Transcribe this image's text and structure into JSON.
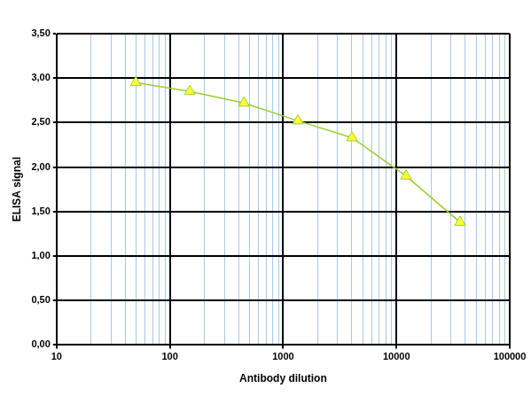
{
  "chart_data": {
    "type": "line",
    "x_label": "Antibody dilution",
    "y_label": "ELISA signal",
    "x": [
      50,
      150,
      450,
      1350,
      4050,
      12150,
      36450
    ],
    "series": [
      {
        "name": "ELISA signal",
        "color": "#9acd32",
        "marker": "triangle",
        "marker_color": "#ffff33",
        "values": [
          2.95,
          2.85,
          2.72,
          2.52,
          2.33,
          1.9,
          1.38
        ]
      }
    ],
    "log": "x",
    "xlim": [
      10,
      100000
    ],
    "xticks": [
      10,
      100,
      1000,
      10000,
      100000
    ],
    "ylim": [
      0,
      3.5
    ],
    "yticks": [
      {
        "value": 0,
        "label": "0,00"
      },
      {
        "value": 0.5,
        "label": "0,50"
      },
      {
        "value": 1,
        "label": "1,00"
      },
      {
        "value": 1.5,
        "label": "1,50"
      },
      {
        "value": 2,
        "label": "2,00"
      },
      {
        "value": 2.5,
        "label": "2,50"
      },
      {
        "value": 3,
        "label": "3,00"
      },
      {
        "value": 3.5,
        "label": "3,50"
      }
    ],
    "grid": true
  }
}
